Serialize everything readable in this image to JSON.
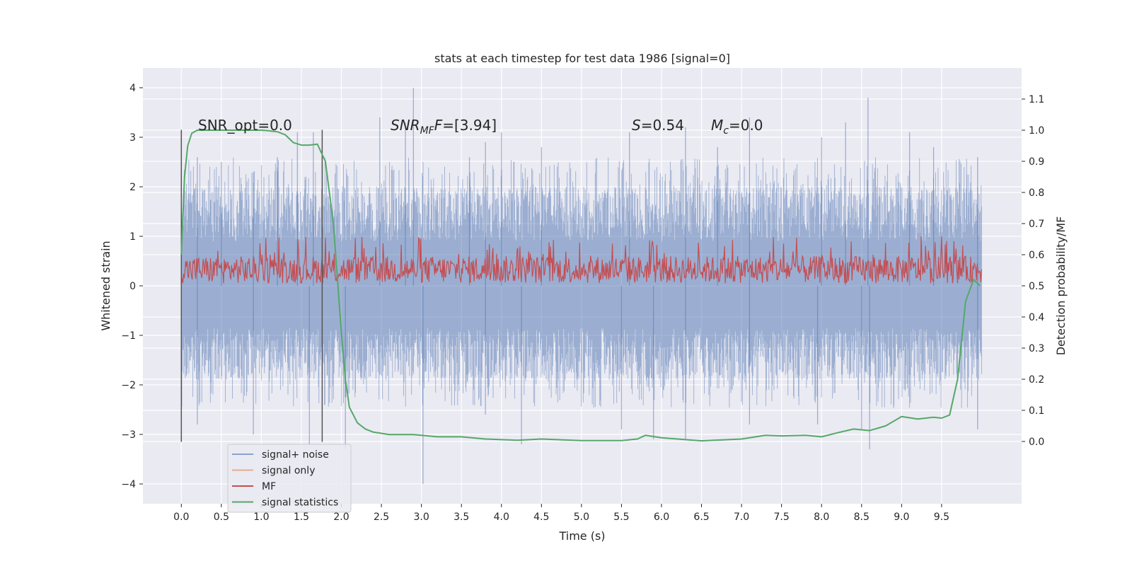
{
  "chart_data": {
    "type": "line",
    "title": "stats at each timestep for test data 1986 [signal=0]",
    "xlabel": "Time (s)",
    "ylabel": "Whitened strain",
    "y2label": "Detection probability/MF",
    "xlim": [
      -0.48,
      10.5
    ],
    "ylim": [
      -4.4,
      4.4
    ],
    "y2lim": [
      -0.2,
      1.2
    ],
    "xticks": [
      0.0,
      0.5,
      1.0,
      1.5,
      2.0,
      2.5,
      3.0,
      3.5,
      4.0,
      4.5,
      5.0,
      5.5,
      6.0,
      6.5,
      7.0,
      7.5,
      8.0,
      8.5,
      9.0,
      9.5
    ],
    "xtick_labels": [
      "0.0",
      "0.5",
      "1.0",
      "1.5",
      "2.0",
      "2.5",
      "3.0",
      "3.5",
      "4.0",
      "4.5",
      "5.0",
      "5.5",
      "6.0",
      "6.5",
      "7.0",
      "7.5",
      "8.0",
      "8.5",
      "9.0",
      "9.5"
    ],
    "yticks": [
      -4,
      -3,
      -2,
      -1,
      0,
      1,
      2,
      3,
      4
    ],
    "ytick_labels": [
      "−4",
      "−3",
      "−2",
      "−1",
      "0",
      "1",
      "2",
      "3",
      "4"
    ],
    "y2ticks": [
      0.0,
      0.1,
      0.2,
      0.3,
      0.4,
      0.5,
      0.6,
      0.7,
      0.8,
      0.9,
      1.0,
      1.1
    ],
    "y2tick_labels": [
      "0.0",
      "0.1",
      "0.2",
      "0.3",
      "0.4",
      "0.5",
      "0.6",
      "0.7",
      "0.8",
      "0.9",
      "1.0",
      "1.1"
    ],
    "grid": true,
    "legend_position": "lower-left",
    "annotations": {
      "snr_opt": "SNR_opt=0.0",
      "snr_mf_base": "SNR",
      "snr_mf_sub": "MF",
      "snr_mf_tail": "=[3.94]",
      "s_base": "S",
      "s_tail": "=0.54",
      "mc_base": "M",
      "mc_sub": "c",
      "mc_tail": "=0.0"
    },
    "markers": [
      {
        "x": 0.0,
        "y_range": [
          -3.15,
          3.15
        ]
      },
      {
        "x": 1.76,
        "y_range": [
          -3.15,
          3.15
        ]
      }
    ],
    "series": [
      {
        "name": "signal+ noise",
        "color": "#4c72b0",
        "kind": "noise_band",
        "x_range": [
          0.0,
          10.0
        ],
        "envelope_typical": [
          -1.9,
          2.0
        ],
        "peaks": [
          [
            0.2,
            2.6
          ],
          [
            0.5,
            2.5
          ],
          [
            0.9,
            2.3
          ],
          [
            1.2,
            2.6
          ],
          [
            1.45,
            3.1
          ],
          [
            1.65,
            3.1
          ],
          [
            2.48,
            3.4
          ],
          [
            2.8,
            3.3
          ],
          [
            2.9,
            4.0
          ],
          [
            3.6,
            2.6
          ],
          [
            3.8,
            2.9
          ],
          [
            4.0,
            3.1
          ],
          [
            4.5,
            2.8
          ],
          [
            5.6,
            3.1
          ],
          [
            6.3,
            3.2
          ],
          [
            6.7,
            2.8
          ],
          [
            7.1,
            3.4
          ],
          [
            8.0,
            3.0
          ],
          [
            8.3,
            3.3
          ],
          [
            8.58,
            3.8
          ],
          [
            9.1,
            3.1
          ],
          [
            9.4,
            2.8
          ],
          [
            9.95,
            2.6
          ]
        ],
        "troughs": [
          [
            0.2,
            -2.8
          ],
          [
            0.9,
            -3.0
          ],
          [
            1.6,
            -3.2
          ],
          [
            2.05,
            -3.3
          ],
          [
            3.02,
            -4.0
          ],
          [
            3.8,
            -2.6
          ],
          [
            4.25,
            -3.2
          ],
          [
            5.5,
            -2.9
          ],
          [
            5.9,
            -3.1
          ],
          [
            6.3,
            -3.1
          ],
          [
            7.1,
            -2.8
          ],
          [
            7.95,
            -2.8
          ],
          [
            8.5,
            -2.9
          ],
          [
            8.6,
            -3.3
          ],
          [
            9.95,
            -2.9
          ]
        ]
      },
      {
        "name": "signal only",
        "color": "#dd8452",
        "kind": "none"
      },
      {
        "name": "MF",
        "color": "#c44e52",
        "kind": "mf_band",
        "x_range": [
          0.0,
          10.0
        ],
        "band": [
          0.05,
          0.6
        ],
        "max": 1.0
      },
      {
        "name": "signal statistics",
        "color": "#55a868",
        "kind": "line",
        "axis": "right",
        "x": [
          0.0,
          0.04,
          0.08,
          0.13,
          0.2,
          0.3,
          0.5,
          0.8,
          1.0,
          1.1,
          1.2,
          1.3,
          1.4,
          1.5,
          1.6,
          1.7,
          1.8,
          1.9,
          2.0,
          2.05,
          2.1,
          2.2,
          2.3,
          2.4,
          2.6,
          2.9,
          3.0,
          3.2,
          3.5,
          3.8,
          4.2,
          4.5,
          5.0,
          5.5,
          5.7,
          5.8,
          6.0,
          6.5,
          7.0,
          7.3,
          7.5,
          7.8,
          8.0,
          8.2,
          8.4,
          8.6,
          8.8,
          9.0,
          9.2,
          9.4,
          9.5,
          9.6,
          9.7,
          9.8,
          9.9,
          9.98
        ],
        "y": [
          0.6,
          0.85,
          0.95,
          0.99,
          1.0,
          1.0,
          1.0,
          1.0,
          1.0,
          0.998,
          0.995,
          0.985,
          0.96,
          0.952,
          0.952,
          0.955,
          0.9,
          0.7,
          0.35,
          0.2,
          0.11,
          0.06,
          0.04,
          0.03,
          0.022,
          0.022,
          0.02,
          0.015,
          0.015,
          0.008,
          0.004,
          0.008,
          0.003,
          0.003,
          0.008,
          0.02,
          0.012,
          0.002,
          0.008,
          0.02,
          0.018,
          0.02,
          0.015,
          0.028,
          0.04,
          0.035,
          0.05,
          0.08,
          0.072,
          0.078,
          0.075,
          0.085,
          0.2,
          0.45,
          0.52,
          0.5
        ]
      }
    ]
  }
}
